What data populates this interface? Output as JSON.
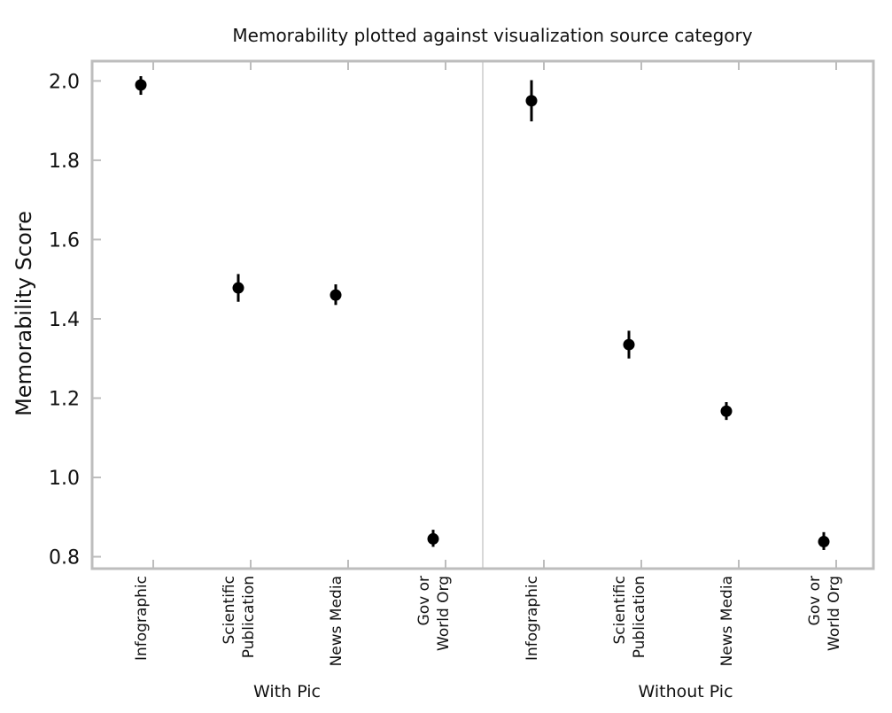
{
  "chart_data": {
    "type": "scatter",
    "title": "Memorability plotted against visualization source category",
    "xlabel": "",
    "ylabel": "Memorability Score",
    "ylim": [
      0.77,
      2.05
    ],
    "yticks": [
      "2.0",
      "1.8",
      "1.6",
      "1.4",
      "1.2",
      "1.0",
      "0.8"
    ],
    "grid": false,
    "groups": [
      {
        "name": "With Pic",
        "categories": [
          [
            "Infographic"
          ],
          [
            "Scientific",
            "Publication"
          ],
          [
            "News Media"
          ],
          [
            "Gov or",
            "World Org"
          ]
        ],
        "values": [
          1.99,
          1.478,
          1.46,
          0.845
        ],
        "err_low": [
          1.965,
          1.443,
          1.435,
          0.825
        ],
        "err_high": [
          2.012,
          1.513,
          1.487,
          0.868
        ]
      },
      {
        "name": "Without Pic",
        "categories": [
          [
            "Infographic"
          ],
          [
            "Scientific",
            "Publication"
          ],
          [
            "News Media"
          ],
          [
            "Gov or",
            "World Org"
          ]
        ],
        "values": [
          1.95,
          1.335,
          1.167,
          0.838
        ],
        "err_low": [
          1.898,
          1.3,
          1.145,
          0.817
        ],
        "err_high": [
          2.002,
          1.37,
          1.19,
          0.862
        ]
      }
    ]
  }
}
